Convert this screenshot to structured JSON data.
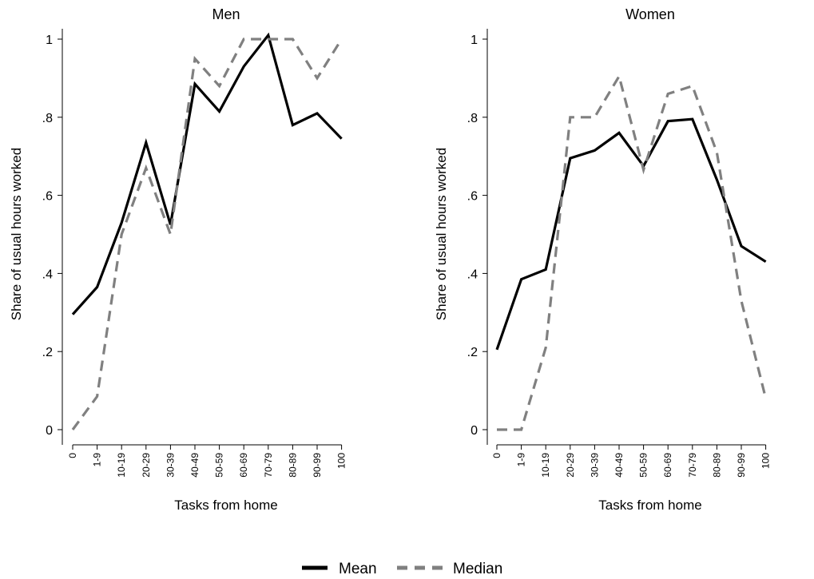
{
  "chart_data": [
    {
      "type": "line",
      "title": "Men",
      "xlabel": "Tasks from home",
      "ylabel": "Share of usual hours worked",
      "ylim": [
        0,
        1
      ],
      "yticks": [
        "0",
        ".2",
        ".4",
        ".6",
        ".8",
        "1"
      ],
      "categories": [
        "0",
        "1-9",
        "10-19",
        "20-29",
        "30-39",
        "40-49",
        "50-59",
        "60-69",
        "70-79",
        "80-89",
        "90-99",
        "100"
      ],
      "series": [
        {
          "name": "Mean",
          "values": [
            0.295,
            0.365,
            0.53,
            0.735,
            0.525,
            0.885,
            0.815,
            0.93,
            1.01,
            0.78,
            0.81,
            0.745
          ]
        },
        {
          "name": "Median",
          "values": [
            0.0,
            0.085,
            0.5,
            0.67,
            0.5,
            0.95,
            0.88,
            1.0,
            1.0,
            1.0,
            0.9,
            1.0
          ]
        }
      ]
    },
    {
      "type": "line",
      "title": "Women",
      "xlabel": "Tasks from home",
      "ylabel": "Share of usual hours worked",
      "ylim": [
        0,
        1
      ],
      "yticks": [
        "0",
        ".2",
        ".4",
        ".6",
        ".8",
        "1"
      ],
      "categories": [
        "0",
        "1-9",
        "10-19",
        "20-29",
        "30-39",
        "40-49",
        "50-59",
        "60-69",
        "70-79",
        "80-89",
        "90-99",
        "100"
      ],
      "series": [
        {
          "name": "Mean",
          "values": [
            0.205,
            0.385,
            0.41,
            0.695,
            0.715,
            0.76,
            0.675,
            0.79,
            0.795,
            0.64,
            0.47,
            0.43
          ]
        },
        {
          "name": "Median",
          "values": [
            0.0,
            0.0,
            0.21,
            0.8,
            0.8,
            0.905,
            0.665,
            0.86,
            0.88,
            0.71,
            0.33,
            0.08
          ]
        }
      ]
    }
  ],
  "legend": {
    "placement": "bottom",
    "items": [
      {
        "label": "Mean",
        "color": "#000000",
        "dash": "solid"
      },
      {
        "label": "Median",
        "color": "#808080",
        "dash": "dashed"
      }
    ]
  }
}
